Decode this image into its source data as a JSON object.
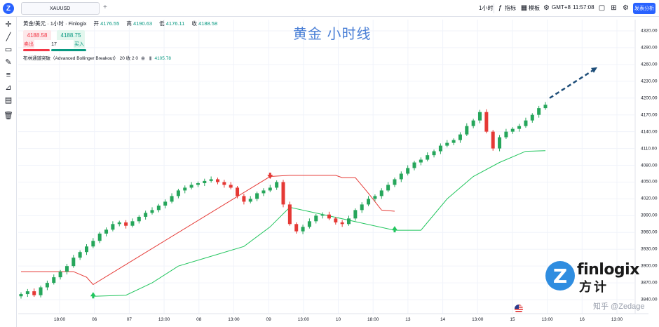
{
  "topbar": {
    "symbol_tab": "XAUUSD",
    "add_tab": "+",
    "interval": "1小时",
    "indicators": "指标",
    "templates": "模板",
    "timezone": "GMT+8",
    "clock": "11:57:08",
    "analysis_button": "发表分析"
  },
  "legend": {
    "title": "黄金/美元 · 1小时 · Finlogix",
    "open_label": "开",
    "open": "4176.55",
    "high_label": "高",
    "high": "4190.63",
    "low_label": "低",
    "low": "4176.11",
    "close_label": "收",
    "close": "4188.58"
  },
  "trade_panel": {
    "sell_price": "4188.58",
    "buy_price": "4188.75",
    "sell_label": "卖出",
    "quantity": "17",
    "buy_label": "买入"
  },
  "indicator": {
    "name": "布林通道突破（Advanced Bollinger Breakout）",
    "params": "20 收 2 0",
    "value": "4105.78"
  },
  "overlay": {
    "title": "黄金 小时线",
    "brand_name": "finlogix",
    "brand_cn": "方计",
    "watermark": "知乎 @Zedage"
  },
  "chart_data": {
    "type": "candlestick",
    "symbol": "XAUUSD",
    "interval": "1h",
    "ylim": [
      3815,
      4330
    ],
    "y_ticks": [
      4320,
      4290,
      4260,
      4230,
      4200,
      4170,
      4140,
      4110,
      4080,
      4050,
      4020,
      3990,
      3960,
      3930,
      3900,
      3870,
      3840
    ],
    "x_ticks": [
      "18:00",
      "06",
      "07",
      "13:00",
      "08",
      "13:00",
      "09",
      "13:00",
      "10",
      "18:00",
      "13",
      "14",
      "13:00",
      "15",
      "13:00",
      "16",
      "13:00"
    ],
    "close_path": [
      3850,
      3855,
      3848,
      3862,
      3870,
      3880,
      3890,
      3900,
      3915,
      3925,
      3935,
      3945,
      3958,
      3965,
      3975,
      3978,
      3972,
      3980,
      3988,
      3995,
      4000,
      4008,
      4015,
      4025,
      4035,
      4040,
      4045,
      4048,
      4052,
      4055,
      4050,
      4045,
      4040,
      4025,
      4015,
      4020,
      4030,
      4035,
      4040,
      4050,
      4010,
      3975,
      3962,
      3970,
      3980,
      3990,
      3992,
      3985,
      3978,
      3975,
      3985,
      4000,
      4010,
      4020,
      4025,
      4035,
      4045,
      4055,
      4065,
      4075,
      4085,
      4090,
      4098,
      4105,
      4115,
      4120,
      4125,
      4135,
      4150,
      4160,
      4175,
      4140,
      4110,
      4130,
      4140,
      4145,
      4150,
      4160,
      4170,
      4182,
      4188
    ],
    "red_band": [
      {
        "x": 0,
        "y": 3890
      },
      {
        "x": 8,
        "y": 3890
      },
      {
        "x": 10,
        "y": 3880
      },
      {
        "x": 11,
        "y": 3867
      },
      {
        "x": 38,
        "y": 4060
      },
      {
        "x": 41,
        "y": 4062
      },
      {
        "x": 48,
        "y": 4062
      },
      {
        "x": 49,
        "y": 4058
      },
      {
        "x": 51,
        "y": 4058
      },
      {
        "x": 53,
        "y": 4030
      },
      {
        "x": 55,
        "y": 4000
      },
      {
        "x": 57,
        "y": 3998
      }
    ],
    "green_band": [
      {
        "x": 11,
        "y": 3846
      },
      {
        "x": 16,
        "y": 3848
      },
      {
        "x": 20,
        "y": 3870
      },
      {
        "x": 24,
        "y": 3900
      },
      {
        "x": 28,
        "y": 3914
      },
      {
        "x": 34,
        "y": 3935
      },
      {
        "x": 38,
        "y": 3970
      },
      {
        "x": 41,
        "y": 4005
      },
      {
        "x": 57,
        "y": 3964
      },
      {
        "x": 61,
        "y": 3964
      },
      {
        "x": 65,
        "y": 4020
      },
      {
        "x": 69,
        "y": 4060
      },
      {
        "x": 73,
        "y": 4085
      },
      {
        "x": 77,
        "y": 4105
      },
      {
        "x": 80,
        "y": 4106
      }
    ],
    "signals": [
      {
        "type": "buy",
        "x": 11,
        "y": 3846
      },
      {
        "type": "sell",
        "x": 38,
        "y": 4063
      },
      {
        "type": "buy",
        "x": 57,
        "y": 3964
      }
    ],
    "projection": {
      "from": [
        4200
      ],
      "to": [
        4255
      ]
    }
  }
}
